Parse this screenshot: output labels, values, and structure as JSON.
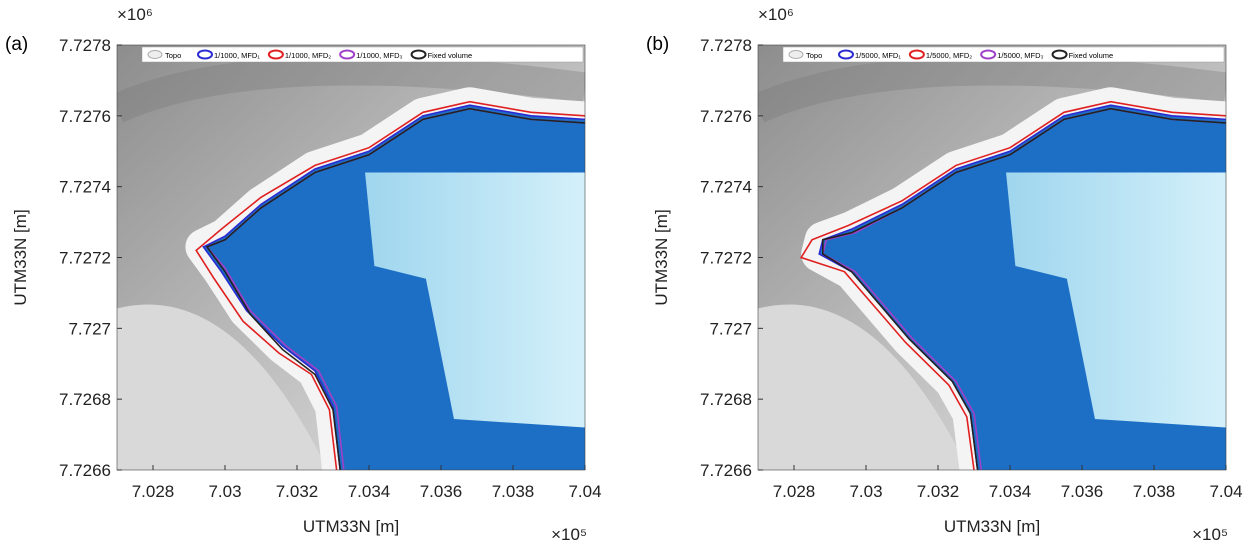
{
  "chart_data": [
    {
      "type": "map",
      "panel_label": "(a)",
      "xlabel": "UTM33N [m]",
      "ylabel": "UTM33N [m]",
      "x_multiplier": "×10⁵",
      "y_multiplier": "×10⁶",
      "background_name": "Topo",
      "xlim": [
        7.027,
        7.04
      ],
      "xticks": [
        7.028,
        7.03,
        7.032,
        7.034,
        7.036,
        7.038,
        7.04
      ],
      "ylim": [
        7.7266,
        7.7278
      ],
      "yticks": [
        7.7266,
        7.7268,
        7.727,
        7.7272,
        7.7274,
        7.7276,
        7.7278
      ],
      "series": [
        {
          "name": "1/1000, MFD₁",
          "color": "#2a2ad2",
          "x": [
            7.04,
            7.0385,
            7.0368,
            7.0355,
            7.034,
            7.0325,
            7.031,
            7.03,
            7.0294,
            7.0299,
            7.0306,
            7.0316,
            7.0325,
            7.033,
            7.0332
          ],
          "y": [
            7.72759,
            7.7276,
            7.72763,
            7.7276,
            7.7275,
            7.72745,
            7.72735,
            7.72726,
            7.72723,
            7.72716,
            7.72705,
            7.72695,
            7.72688,
            7.72678,
            7.7266
          ]
        },
        {
          "name": "1/1000, MFD₂",
          "color": "#e02020",
          "x": [
            7.04,
            7.0385,
            7.0368,
            7.0355,
            7.034,
            7.0325,
            7.031,
            7.0299,
            7.0292,
            7.0297,
            7.0305,
            7.0315,
            7.0324,
            7.0329,
            7.0331
          ],
          "y": [
            7.7276,
            7.72761,
            7.72764,
            7.72761,
            7.72751,
            7.72746,
            7.72737,
            7.72728,
            7.72722,
            7.72714,
            7.72702,
            7.72693,
            7.72687,
            7.72677,
            7.7266
          ]
        },
        {
          "name": "1/1000, MFD₃",
          "color": "#a040c8",
          "x": [
            7.04,
            7.0385,
            7.0368,
            7.0355,
            7.034,
            7.0325,
            7.031,
            7.03,
            7.0295,
            7.03,
            7.0307,
            7.0317,
            7.0326,
            7.0331,
            7.0333
          ],
          "y": [
            7.72758,
            7.72759,
            7.72762,
            7.72759,
            7.72749,
            7.72744,
            7.72734,
            7.72725,
            7.72723,
            7.72717,
            7.72705,
            7.72695,
            7.72688,
            7.72678,
            7.7266
          ]
        },
        {
          "name": "Fixed volume",
          "color": "#222222",
          "x": [
            7.04,
            7.0385,
            7.0368,
            7.0355,
            7.034,
            7.0325,
            7.031,
            7.03,
            7.0295,
            7.03,
            7.0307,
            7.0316,
            7.0325,
            7.033,
            7.0332
          ],
          "y": [
            7.72758,
            7.72759,
            7.72762,
            7.72759,
            7.72749,
            7.72744,
            7.72734,
            7.72725,
            7.72723,
            7.72716,
            7.72704,
            7.72694,
            7.72687,
            7.72677,
            7.7266
          ]
        }
      ]
    },
    {
      "type": "map",
      "panel_label": "(b)",
      "xlabel": "UTM33N [m]",
      "ylabel": "UTM33N [m]",
      "x_multiplier": "×10⁵",
      "y_multiplier": "×10⁶",
      "background_name": "Topo",
      "xlim": [
        7.027,
        7.04
      ],
      "xticks": [
        7.028,
        7.03,
        7.032,
        7.034,
        7.036,
        7.038,
        7.04
      ],
      "ylim": [
        7.7266,
        7.7278
      ],
      "yticks": [
        7.7266,
        7.7268,
        7.727,
        7.7272,
        7.7274,
        7.7276,
        7.7278
      ],
      "series": [
        {
          "name": "1/5000, MFD₁",
          "color": "#2a2ad2",
          "x": [
            7.04,
            7.0385,
            7.0368,
            7.0355,
            7.034,
            7.0325,
            7.031,
            7.0296,
            7.0288,
            7.0287,
            7.0296,
            7.0312,
            7.0324,
            7.0329,
            7.0331
          ],
          "y": [
            7.72759,
            7.7276,
            7.72763,
            7.7276,
            7.7275,
            7.72745,
            7.72735,
            7.72728,
            7.72725,
            7.72721,
            7.72716,
            7.72697,
            7.72685,
            7.72676,
            7.7266
          ]
        },
        {
          "name": "1/5000, MFD₂",
          "color": "#e02020",
          "x": [
            7.04,
            7.0385,
            7.0368,
            7.0355,
            7.034,
            7.0325,
            7.031,
            7.0295,
            7.0285,
            7.0282,
            7.0294,
            7.0311,
            7.0323,
            7.0328,
            7.033
          ],
          "y": [
            7.7276,
            7.72761,
            7.72764,
            7.72761,
            7.72751,
            7.72746,
            7.72736,
            7.72729,
            7.72725,
            7.7272,
            7.72716,
            7.72696,
            7.72684,
            7.72675,
            7.7266
          ]
        },
        {
          "name": "1/5000, MFD₃",
          "color": "#a040c8",
          "x": [
            7.04,
            7.0385,
            7.0368,
            7.0355,
            7.034,
            7.0325,
            7.031,
            7.0297,
            7.0289,
            7.0288,
            7.0297,
            7.0313,
            7.0325,
            7.033,
            7.0332
          ],
          "y": [
            7.72758,
            7.72759,
            7.72762,
            7.72759,
            7.72749,
            7.72744,
            7.72734,
            7.72727,
            7.72725,
            7.72721,
            7.72716,
            7.72697,
            7.72685,
            7.72676,
            7.7266
          ]
        },
        {
          "name": "Fixed volume",
          "color": "#222222",
          "x": [
            7.04,
            7.0385,
            7.0368,
            7.0355,
            7.034,
            7.0325,
            7.031,
            7.0296,
            7.0288,
            7.0288,
            7.0296,
            7.0312,
            7.0324,
            7.0329,
            7.0331
          ],
          "y": [
            7.72758,
            7.72759,
            7.72762,
            7.72759,
            7.72749,
            7.72744,
            7.72734,
            7.72727,
            7.72725,
            7.72721,
            7.72716,
            7.72697,
            7.72685,
            7.72676,
            7.7266
          ]
        }
      ]
    }
  ]
}
